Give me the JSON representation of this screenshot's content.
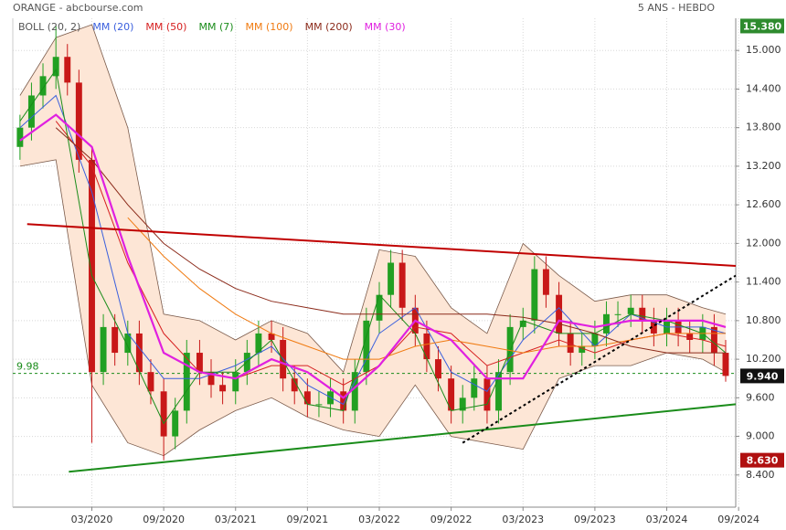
{
  "chart_data": {
    "type": "candlestick",
    "title": "ORANGE - abcbourse.com",
    "subtitle": "5 ANS - HEBDO",
    "xlim": [
      2019.62,
      2024.65
    ],
    "ylim": [
      7.9,
      15.5
    ],
    "xticks": [
      {
        "value": 2020.17,
        "label": "03/2020"
      },
      {
        "value": 2020.67,
        "label": "09/2020"
      },
      {
        "value": 2021.17,
        "label": "03/2021"
      },
      {
        "value": 2021.67,
        "label": "09/2021"
      },
      {
        "value": 2022.17,
        "label": "03/2022"
      },
      {
        "value": 2022.67,
        "label": "09/2022"
      },
      {
        "value": 2023.17,
        "label": "03/2023"
      },
      {
        "value": 2023.67,
        "label": "09/2023"
      },
      {
        "value": 2024.17,
        "label": "03/2024"
      },
      {
        "value": 2024.67,
        "label": "09/2024"
      }
    ],
    "yticks": [
      {
        "value": 8.4,
        "label": "8.400"
      },
      {
        "value": 9.0,
        "label": "9.000"
      },
      {
        "value": 9.6,
        "label": "9.600"
      },
      {
        "value": 10.2,
        "label": "10.200"
      },
      {
        "value": 10.8,
        "label": "10.800"
      },
      {
        "value": 11.4,
        "label": "11.400"
      },
      {
        "value": 12.0,
        "label": "12.000"
      },
      {
        "value": 12.6,
        "label": "12.600"
      },
      {
        "value": 13.2,
        "label": "13.200"
      },
      {
        "value": 13.8,
        "label": "13.800"
      },
      {
        "value": 14.4,
        "label": "14.400"
      },
      {
        "value": 15.0,
        "label": "15.000"
      }
    ],
    "grid": true,
    "up_color": "#22a022",
    "down_color": "#c81818",
    "candles": {
      "x": [
        2019.67,
        2019.75,
        2019.83,
        2019.92,
        2020.0,
        2020.08,
        2020.17,
        2020.25,
        2020.33,
        2020.42,
        2020.5,
        2020.58,
        2020.67,
        2020.75,
        2020.83,
        2020.92,
        2021.0,
        2021.08,
        2021.17,
        2021.25,
        2021.33,
        2021.42,
        2021.5,
        2021.58,
        2021.67,
        2021.75,
        2021.83,
        2021.92,
        2022.0,
        2022.08,
        2022.17,
        2022.25,
        2022.33,
        2022.42,
        2022.5,
        2022.58,
        2022.67,
        2022.75,
        2022.83,
        2022.92,
        2023.0,
        2023.08,
        2023.17,
        2023.25,
        2023.33,
        2023.42,
        2023.5,
        2023.58,
        2023.67,
        2023.75,
        2023.83,
        2023.92,
        2024.0,
        2024.08,
        2024.17,
        2024.25,
        2024.33,
        2024.42,
        2024.5,
        2024.58
      ],
      "open": [
        13.5,
        13.8,
        14.3,
        14.6,
        14.9,
        14.5,
        13.3,
        10.0,
        10.7,
        10.3,
        10.6,
        10.0,
        9.7,
        9.0,
        9.4,
        10.3,
        10.0,
        9.8,
        9.7,
        10.0,
        10.3,
        10.6,
        10.5,
        9.9,
        9.7,
        9.5,
        9.5,
        9.7,
        9.4,
        10.0,
        10.8,
        11.2,
        11.7,
        11.0,
        10.6,
        10.2,
        9.9,
        9.4,
        9.6,
        9.9,
        9.4,
        10.0,
        10.7,
        10.8,
        11.6,
        11.2,
        10.6,
        10.3,
        10.4,
        10.6,
        10.9,
        10.9,
        11.0,
        10.8,
        10.6,
        10.8,
        10.6,
        10.5,
        10.7,
        10.3
      ],
      "high": [
        14.0,
        14.5,
        14.8,
        15.38,
        15.1,
        14.7,
        13.5,
        10.9,
        10.9,
        10.8,
        10.8,
        10.2,
        9.9,
        9.6,
        10.5,
        10.5,
        10.2,
        10.0,
        10.2,
        10.5,
        10.8,
        10.8,
        10.7,
        10.1,
        9.9,
        9.7,
        9.9,
        9.9,
        10.2,
        11.0,
        11.4,
        11.9,
        11.9,
        11.2,
        10.8,
        10.4,
        10.1,
        9.8,
        10.1,
        10.1,
        10.2,
        10.9,
        11.0,
        11.8,
        11.8,
        11.4,
        10.8,
        10.6,
        10.8,
        11.1,
        11.1,
        11.2,
        11.2,
        11.0,
        11.0,
        11.0,
        10.8,
        10.9,
        10.9,
        10.5
      ],
      "low": [
        13.3,
        13.6,
        14.1,
        14.4,
        14.3,
        13.1,
        8.9,
        9.8,
        10.1,
        10.1,
        9.8,
        9.5,
        8.63,
        8.8,
        9.2,
        9.8,
        9.6,
        9.5,
        9.5,
        9.8,
        10.1,
        10.3,
        9.7,
        9.5,
        9.3,
        9.3,
        9.3,
        9.2,
        9.2,
        9.8,
        10.6,
        11.0,
        10.8,
        10.4,
        10.0,
        9.7,
        9.2,
        9.2,
        9.4,
        9.2,
        9.2,
        9.8,
        10.5,
        10.6,
        11.0,
        10.4,
        10.1,
        10.1,
        10.2,
        10.4,
        10.7,
        10.7,
        10.6,
        10.4,
        10.4,
        10.4,
        10.3,
        10.3,
        10.1,
        9.85
      ],
      "close": [
        13.8,
        14.3,
        14.6,
        14.9,
        14.5,
        13.3,
        10.0,
        10.7,
        10.3,
        10.6,
        10.0,
        9.7,
        9.0,
        9.4,
        10.3,
        10.0,
        9.8,
        9.7,
        10.0,
        10.3,
        10.6,
        10.5,
        9.9,
        9.7,
        9.5,
        9.5,
        9.7,
        9.4,
        10.0,
        10.8,
        11.2,
        11.7,
        11.0,
        10.6,
        10.2,
        9.9,
        9.4,
        9.6,
        9.9,
        9.4,
        10.0,
        10.7,
        10.8,
        11.6,
        11.2,
        10.6,
        10.3,
        10.4,
        10.6,
        10.9,
        10.9,
        11.0,
        10.8,
        10.6,
        10.8,
        10.6,
        10.5,
        10.7,
        10.3,
        9.94
      ]
    },
    "ma_x": [
      2019.67,
      2019.92,
      2020.17,
      2020.42,
      2020.67,
      2020.92,
      2021.17,
      2021.42,
      2021.67,
      2021.92,
      2022.17,
      2022.42,
      2022.67,
      2022.92,
      2023.17,
      2023.42,
      2023.67,
      2023.92,
      2024.17,
      2024.42,
      2024.58
    ],
    "bollinger": {
      "name": "BOLL (20, 2)",
      "color": "#7a5a4a",
      "fill": "#fde6d6",
      "upper": [
        14.3,
        15.2,
        15.4,
        13.8,
        10.9,
        10.8,
        10.5,
        10.8,
        10.6,
        10.0,
        11.9,
        11.8,
        11.0,
        10.6,
        12.0,
        11.5,
        11.1,
        11.2,
        11.2,
        11.0,
        10.9
      ],
      "lower": [
        13.2,
        13.3,
        9.8,
        8.9,
        8.7,
        9.1,
        9.4,
        9.6,
        9.3,
        9.1,
        9.0,
        9.8,
        9.0,
        8.9,
        8.8,
        9.9,
        10.1,
        10.1,
        10.3,
        10.2,
        10.0
      ]
    },
    "series": [
      {
        "name": "MM (20)",
        "color": "#3a5fdd",
        "values": [
          13.8,
          14.3,
          12.8,
          10.6,
          9.9,
          9.9,
          10.1,
          10.4,
          9.8,
          9.5,
          10.6,
          11.0,
          10.0,
          9.7,
          10.5,
          11.0,
          10.4,
          10.9,
          10.7,
          10.7,
          10.6
        ]
      },
      {
        "name": "MM (50)",
        "color": "#d62020",
        "values": [
          null,
          13.9,
          13.2,
          11.7,
          10.6,
          10.0,
          9.9,
          10.1,
          10.1,
          9.8,
          10.1,
          10.7,
          10.6,
          10.1,
          10.3,
          10.5,
          10.3,
          10.5,
          10.6,
          10.5,
          10.4
        ]
      },
      {
        "name": "MM (7)",
        "color": "#1a8c1a",
        "values": [
          13.9,
          14.7,
          11.5,
          10.4,
          9.2,
          10.0,
          10.0,
          10.5,
          9.5,
          9.4,
          11.2,
          10.6,
          9.4,
          9.5,
          10.8,
          10.6,
          10.6,
          10.9,
          10.8,
          10.6,
          10.3
        ]
      },
      {
        "name": "MM (100)",
        "color": "#f07a10",
        "values": [
          null,
          null,
          null,
          12.4,
          11.8,
          11.3,
          10.9,
          10.6,
          10.4,
          10.2,
          10.2,
          10.4,
          10.5,
          10.4,
          10.3,
          10.4,
          10.4,
          10.5,
          10.6,
          10.6,
          10.6
        ]
      },
      {
        "name": "MM (200)",
        "color": "#8b2a1a",
        "values": [
          null,
          13.8,
          13.3,
          12.6,
          12.0,
          11.6,
          11.3,
          11.1,
          11.0,
          10.9,
          10.9,
          10.9,
          10.9,
          10.9,
          10.85,
          10.75,
          10.6,
          10.4,
          10.3,
          10.3,
          10.3
        ]
      },
      {
        "name": "MM (30)",
        "color": "#e020e0",
        "values": [
          13.6,
          14.0,
          13.5,
          11.8,
          10.3,
          10.0,
          9.9,
          10.2,
          10.0,
          9.6,
          10.1,
          10.8,
          10.5,
          9.9,
          9.9,
          10.8,
          10.7,
          10.8,
          10.8,
          10.8,
          10.7
        ]
      }
    ],
    "trendlines": [
      {
        "color": "#c00000",
        "dashed": false,
        "x": [
          2019.72,
          2024.65
        ],
        "y": [
          12.3,
          11.65
        ]
      },
      {
        "color": "#1a8c1a",
        "dashed": false,
        "x": [
          2020.01,
          2024.65
        ],
        "y": [
          8.45,
          9.5
        ]
      },
      {
        "color": "#000000",
        "dashed": true,
        "x": [
          2022.75,
          2024.65
        ],
        "y": [
          8.9,
          11.5
        ]
      }
    ],
    "reference_line": {
      "value": 9.98,
      "label": "9.98",
      "color": "#1a8c1a"
    },
    "price_markers": [
      {
        "value": 15.38,
        "label": "15.380",
        "color": "#2e8b2e"
      },
      {
        "value": 9.94,
        "label": "9.940",
        "color": "#111111"
      },
      {
        "value": 8.63,
        "label": "8.630",
        "color": "#b01010"
      }
    ]
  }
}
